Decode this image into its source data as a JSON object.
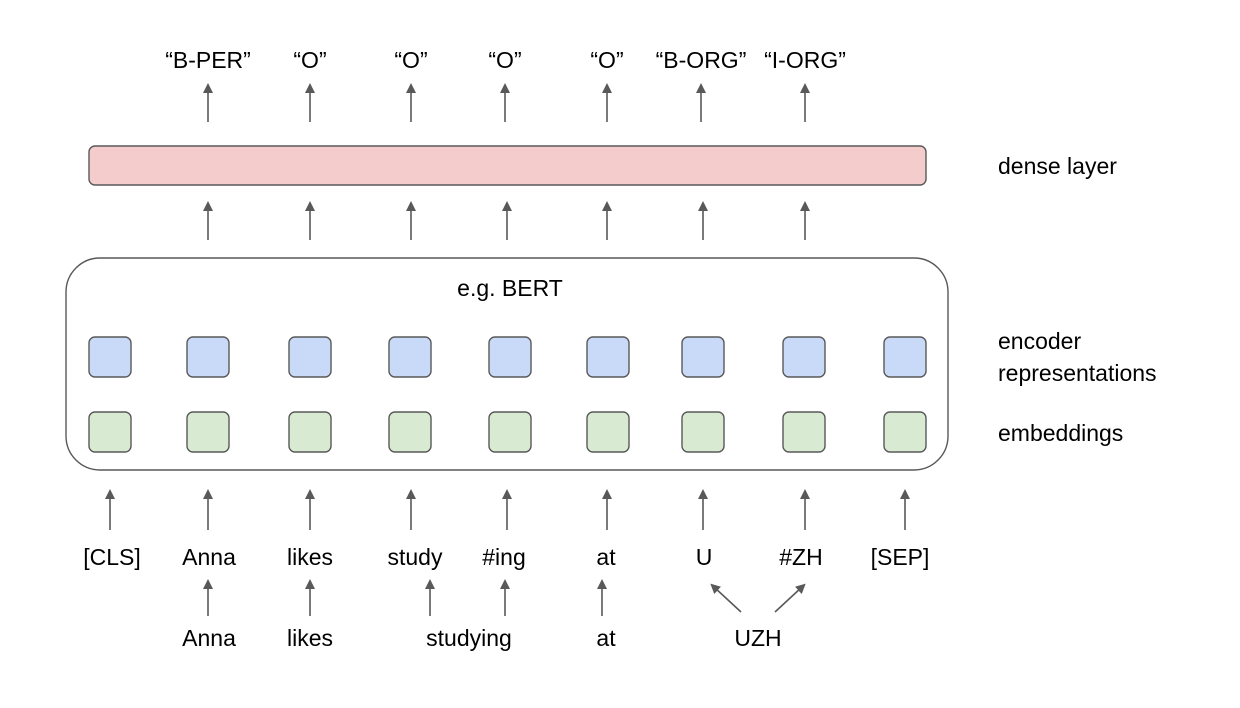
{
  "title": "e.g. BERT",
  "output_tags": [
    "“B-PER”",
    "“O”",
    "“O”",
    "“O”",
    "“O”",
    "“B-ORG”",
    "“I-ORG”"
  ],
  "layers": {
    "dense": "dense layer",
    "encoder_line1": "encoder",
    "encoder_line2": "representations",
    "embeddings": "embeddings"
  },
  "tokens": [
    "[CLS]",
    "Anna",
    "likes",
    "study",
    "#ing",
    "at",
    "U",
    "#ZH",
    "[SEP]"
  ],
  "words": [
    "Anna",
    "likes",
    "studying",
    "at",
    "UZH"
  ],
  "colors": {
    "dense_fill": "#f4cccc",
    "encoder_fill": "#c9daf8",
    "embedding_fill": "#d9ead3",
    "stroke": "#595959",
    "arrow": "#595959"
  },
  "icons": {
    "arrow": "up-arrow-icon"
  }
}
